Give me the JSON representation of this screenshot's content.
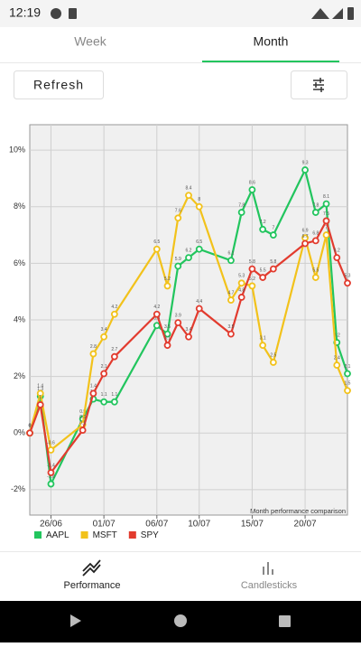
{
  "status_bar": {
    "time": "12:19"
  },
  "tabs": [
    "Week",
    "Month"
  ],
  "refresh": "Refresh",
  "chart_data": {
    "type": "line",
    "x": [
      "24/06",
      "25/06",
      "26/06",
      "29/06",
      "30/06",
      "01/07",
      "02/07",
      "06/07",
      "07/07",
      "08/07",
      "09/07",
      "10/07",
      "13/07",
      "14/07",
      "15/07",
      "16/07",
      "17/07",
      "20/07",
      "21/07",
      "22/07",
      "23/07",
      "24/07"
    ],
    "series": [
      {
        "name": "AAPL",
        "color": "#22c55e",
        "values": [
          0,
          1.3,
          -1.8,
          0.5,
          1.2,
          1.1,
          1.1,
          3.8,
          3.5,
          5.9,
          6.2,
          6.5,
          6.1,
          7.8,
          8.6,
          7.2,
          7.0,
          9.3,
          7.8,
          8.1,
          3.2,
          2.1
        ]
      },
      {
        "name": "MSFT",
        "color": "#f2c21b",
        "values": [
          0,
          1.4,
          -0.6,
          0.3,
          2.8,
          3.4,
          4.2,
          6.5,
          5.2,
          7.6,
          8.4,
          8.0,
          4.7,
          5.3,
          5.2,
          3.1,
          2.5,
          6.9,
          5.5,
          7.0,
          2.4,
          1.5
        ]
      },
      {
        "name": "SPY",
        "color": "#e23b2e",
        "values": [
          0,
          1.0,
          -1.4,
          0.1,
          1.4,
          2.1,
          2.7,
          4.2,
          3.1,
          3.9,
          3.4,
          4.4,
          3.5,
          4.8,
          5.8,
          5.5,
          5.8,
          6.7,
          6.8,
          7.5,
          6.2,
          5.3
        ]
      }
    ],
    "xlim": [
      "24/06",
      "24/07"
    ],
    "xticks": [
      "26/06",
      "01/07",
      "06/07",
      "10/07",
      "15/07",
      "20/07"
    ],
    "ylim": [
      -2.9,
      10.9
    ],
    "yticks": [
      {
        "value": -2,
        "label": "-2%"
      },
      {
        "value": 0,
        "label": "0%"
      },
      {
        "value": 2,
        "label": "2%"
      },
      {
        "value": 4,
        "label": "4%"
      },
      {
        "value": 6,
        "label": "6%"
      },
      {
        "value": 8,
        "label": "8%"
      },
      {
        "value": 10,
        "label": "10%"
      }
    ],
    "grid": true,
    "annotation": "Month performance comparison"
  },
  "bottom_nav": [
    "Performance",
    "Candlesticks"
  ]
}
